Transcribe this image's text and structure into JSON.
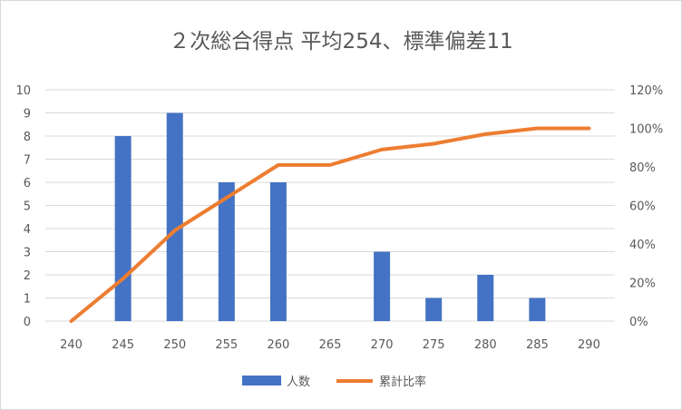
{
  "chart_data": {
    "type": "bar",
    "title": "２次総合得点 平均254、標準偏差11",
    "categories": [
      "240",
      "245",
      "250",
      "255",
      "260",
      "265",
      "270",
      "275",
      "280",
      "285",
      "290"
    ],
    "series": [
      {
        "name": "人数",
        "type": "bar",
        "axis": "left",
        "color": "#4472c4",
        "values": [
          0,
          8,
          9,
          6,
          6,
          0,
          3,
          1,
          2,
          1,
          0
        ]
      },
      {
        "name": "累計比率",
        "type": "line",
        "axis": "right",
        "color": "#ed7d31",
        "values": [
          0,
          22,
          47,
          64,
          81,
          81,
          89,
          92,
          97,
          100,
          100
        ]
      }
    ],
    "y_left": {
      "min": 0,
      "max": 10,
      "step": 1,
      "ticks": [
        "0",
        "1",
        "2",
        "3",
        "4",
        "5",
        "6",
        "7",
        "8",
        "9",
        "10"
      ]
    },
    "y_right": {
      "min": 0,
      "max": 120,
      "step": 20,
      "ticks": [
        "0%",
        "20%",
        "40%",
        "60%",
        "80%",
        "100%",
        "120%"
      ]
    },
    "grid": true,
    "legend": "bottom"
  }
}
